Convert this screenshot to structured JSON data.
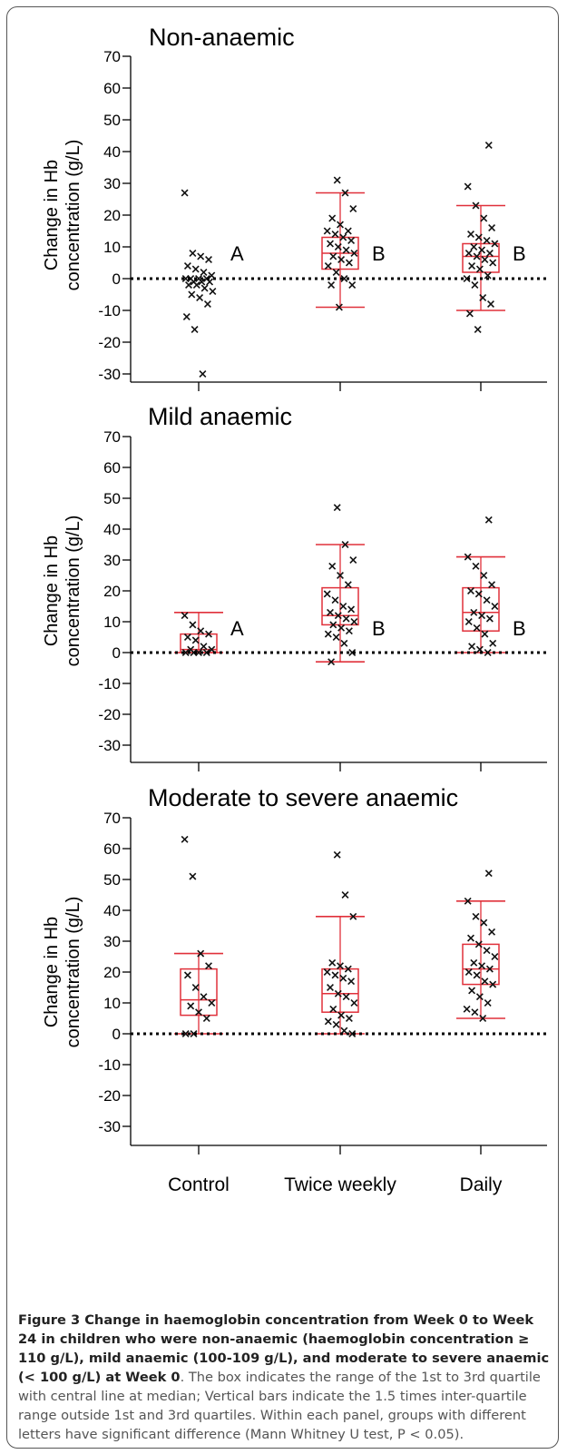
{
  "y_axis_label_line1": "Change in Hb",
  "y_axis_label_line2": "concentration (g/L)",
  "groups": [
    "Control",
    "Twice weekly",
    "Daily"
  ],
  "colors": {
    "box": "#e0303a",
    "point": "#111111",
    "axis": "#000000"
  },
  "chart_data": [
    {
      "type": "box",
      "title": "Non-anaemic",
      "ylabel": "Change in Hb concentration (g/L)",
      "categories": [
        "Control",
        "Twice weekly",
        "Daily"
      ],
      "ylim": [
        -30,
        70
      ],
      "yticks": [
        "70",
        "60",
        "50",
        "40",
        "30",
        "20",
        "10",
        "0",
        "-10",
        "-20",
        "-30"
      ],
      "zero_line": "dotted",
      "letters": [
        "A",
        "B",
        "B"
      ],
      "box_stats": [
        null,
        {
          "whisker_low": -9,
          "q1": 3,
          "median": 8,
          "q3": 13,
          "whisker_high": 27
        },
        {
          "whisker_low": -10,
          "q1": 2,
          "median": 7,
          "q3": 11,
          "whisker_high": 23
        }
      ],
      "points": [
        [
          27,
          8,
          7,
          6,
          4,
          3,
          2,
          1,
          0,
          0,
          0,
          0,
          -1,
          -1,
          -1,
          -2,
          -2,
          -3,
          -4,
          -5,
          -6,
          -8,
          -12,
          -16,
          -30
        ],
        [
          31,
          27,
          22,
          19,
          17,
          15,
          15,
          14,
          13,
          12,
          11,
          10,
          9,
          8,
          7,
          6,
          5,
          4,
          2,
          0,
          -2,
          -2,
          -9
        ],
        [
          42,
          29,
          23,
          19,
          16,
          14,
          13,
          12,
          11,
          10,
          9,
          8,
          8,
          7,
          6,
          5,
          4,
          3,
          1,
          0,
          -2,
          -6,
          -8,
          -11,
          -16
        ]
      ]
    },
    {
      "type": "box",
      "title": "Mild anaemic",
      "ylabel": "Change in Hb concentration (g/L)",
      "categories": [
        "Control",
        "Twice weekly",
        "Daily"
      ],
      "ylim": [
        -30,
        70
      ],
      "yticks": [
        "70",
        "60",
        "50",
        "40",
        "30",
        "20",
        "10",
        "0",
        "-10",
        "-20",
        "-30"
      ],
      "zero_line": "dotted",
      "letters": [
        "A",
        "B",
        "B"
      ],
      "box_stats": [
        {
          "whisker_low": 0,
          "q1": 0,
          "median": 1,
          "q3": 6,
          "whisker_high": 13
        },
        {
          "whisker_low": -3,
          "q1": 9,
          "median": 12,
          "q3": 21,
          "whisker_high": 35
        },
        {
          "whisker_low": 0,
          "q1": 7,
          "median": 13,
          "q3": 21,
          "whisker_high": 31
        }
      ],
      "points": [
        [
          12,
          9,
          7,
          6,
          5,
          4,
          2,
          1,
          1,
          0,
          0,
          0,
          0
        ],
        [
          47,
          35,
          30,
          28,
          25,
          22,
          19,
          17,
          15,
          14,
          13,
          12,
          11,
          10,
          9,
          8,
          7,
          6,
          5,
          3,
          0,
          -3
        ],
        [
          43,
          31,
          28,
          25,
          22,
          20,
          19,
          17,
          15,
          13,
          12,
          11,
          10,
          8,
          6,
          3,
          2,
          1,
          0
        ]
      ]
    },
    {
      "type": "box",
      "title": "Moderate to severe anaemic",
      "ylabel": "Change in Hb concentration (g/L)",
      "categories": [
        "Control",
        "Twice weekly",
        "Daily"
      ],
      "ylim": [
        -30,
        70
      ],
      "yticks": [
        "70",
        "60",
        "50",
        "40",
        "30",
        "20",
        "10",
        "0",
        "-10",
        "-20",
        "-30"
      ],
      "zero_line": "dotted",
      "letters": [
        "",
        "",
        ""
      ],
      "box_stats": [
        {
          "whisker_low": 0,
          "q1": 6,
          "median": 11,
          "q3": 21,
          "whisker_high": 26
        },
        {
          "whisker_low": 0,
          "q1": 7,
          "median": 13,
          "q3": 21,
          "whisker_high": 38
        },
        {
          "whisker_low": 5,
          "q1": 16,
          "median": 21,
          "q3": 29,
          "whisker_high": 43
        }
      ],
      "points": [
        [
          63,
          51,
          26,
          22,
          19,
          15,
          12,
          10,
          9,
          7,
          5,
          0,
          0
        ],
        [
          58,
          45,
          38,
          23,
          22,
          21,
          20,
          19,
          18,
          17,
          15,
          13,
          12,
          10,
          8,
          6,
          5,
          4,
          3,
          1,
          0
        ],
        [
          52,
          43,
          38,
          36,
          33,
          31,
          29,
          27,
          25,
          23,
          22,
          21,
          20,
          19,
          17,
          16,
          14,
          12,
          10,
          8,
          7,
          5
        ]
      ]
    }
  ],
  "caption": {
    "bold": "Figure 3 Change in haemoglobin concentration from Week 0 to Week 24 in children who were non-anaemic (haemoglobin concentration ≥ 110 g/L), mild anaemic (100-109 g/L), and moderate to severe anaemic (< 100 g/L) at Week 0",
    "body": ". The box indicates the range of the 1st to 3rd quartile with central line at median; Vertical bars indicate the 1.5 times inter-quartile range outside 1st and 3rd quartiles. Within each panel, groups with different letters have significant difference (Mann Whitney U test, P < 0.05)."
  }
}
